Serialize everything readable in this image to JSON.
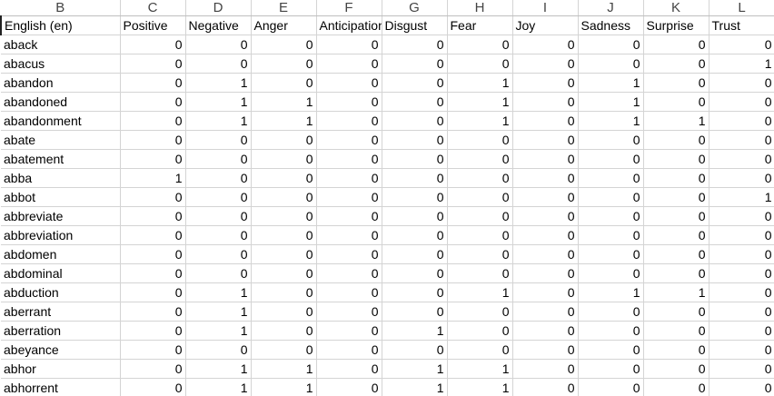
{
  "column_letters": [
    "B",
    "C",
    "D",
    "E",
    "F",
    "G",
    "H",
    "I",
    "J",
    "K",
    "L"
  ],
  "headers": [
    "English (en)",
    "Positive",
    "Negative",
    "Anger",
    "Anticipation",
    "Disgust",
    "Fear",
    "Joy",
    "Sadness",
    "Surprise",
    "Trust"
  ],
  "rows": [
    {
      "word": "aback",
      "values": [
        0,
        0,
        0,
        0,
        0,
        0,
        0,
        0,
        0,
        0
      ]
    },
    {
      "word": "abacus",
      "values": [
        0,
        0,
        0,
        0,
        0,
        0,
        0,
        0,
        0,
        1
      ]
    },
    {
      "word": "abandon",
      "values": [
        0,
        1,
        0,
        0,
        0,
        1,
        0,
        1,
        0,
        0
      ]
    },
    {
      "word": "abandoned",
      "values": [
        0,
        1,
        1,
        0,
        0,
        1,
        0,
        1,
        0,
        0
      ]
    },
    {
      "word": "abandonment",
      "values": [
        0,
        1,
        1,
        0,
        0,
        1,
        0,
        1,
        1,
        0
      ]
    },
    {
      "word": "abate",
      "values": [
        0,
        0,
        0,
        0,
        0,
        0,
        0,
        0,
        0,
        0
      ]
    },
    {
      "word": "abatement",
      "values": [
        0,
        0,
        0,
        0,
        0,
        0,
        0,
        0,
        0,
        0
      ]
    },
    {
      "word": "abba",
      "values": [
        1,
        0,
        0,
        0,
        0,
        0,
        0,
        0,
        0,
        0
      ]
    },
    {
      "word": "abbot",
      "values": [
        0,
        0,
        0,
        0,
        0,
        0,
        0,
        0,
        0,
        1
      ]
    },
    {
      "word": "abbreviate",
      "values": [
        0,
        0,
        0,
        0,
        0,
        0,
        0,
        0,
        0,
        0
      ]
    },
    {
      "word": "abbreviation",
      "values": [
        0,
        0,
        0,
        0,
        0,
        0,
        0,
        0,
        0,
        0
      ]
    },
    {
      "word": "abdomen",
      "values": [
        0,
        0,
        0,
        0,
        0,
        0,
        0,
        0,
        0,
        0
      ]
    },
    {
      "word": "abdominal",
      "values": [
        0,
        0,
        0,
        0,
        0,
        0,
        0,
        0,
        0,
        0
      ]
    },
    {
      "word": "abduction",
      "values": [
        0,
        1,
        0,
        0,
        0,
        1,
        0,
        1,
        1,
        0
      ]
    },
    {
      "word": "aberrant",
      "values": [
        0,
        1,
        0,
        0,
        0,
        0,
        0,
        0,
        0,
        0
      ]
    },
    {
      "word": "aberration",
      "values": [
        0,
        1,
        0,
        0,
        1,
        0,
        0,
        0,
        0,
        0
      ]
    },
    {
      "word": "abeyance",
      "values": [
        0,
        0,
        0,
        0,
        0,
        0,
        0,
        0,
        0,
        0
      ]
    },
    {
      "word": "abhor",
      "values": [
        0,
        1,
        1,
        0,
        1,
        1,
        0,
        0,
        0,
        0
      ]
    },
    {
      "word": "abhorrent",
      "values": [
        0,
        1,
        1,
        0,
        1,
        1,
        0,
        0,
        0,
        0
      ]
    }
  ]
}
